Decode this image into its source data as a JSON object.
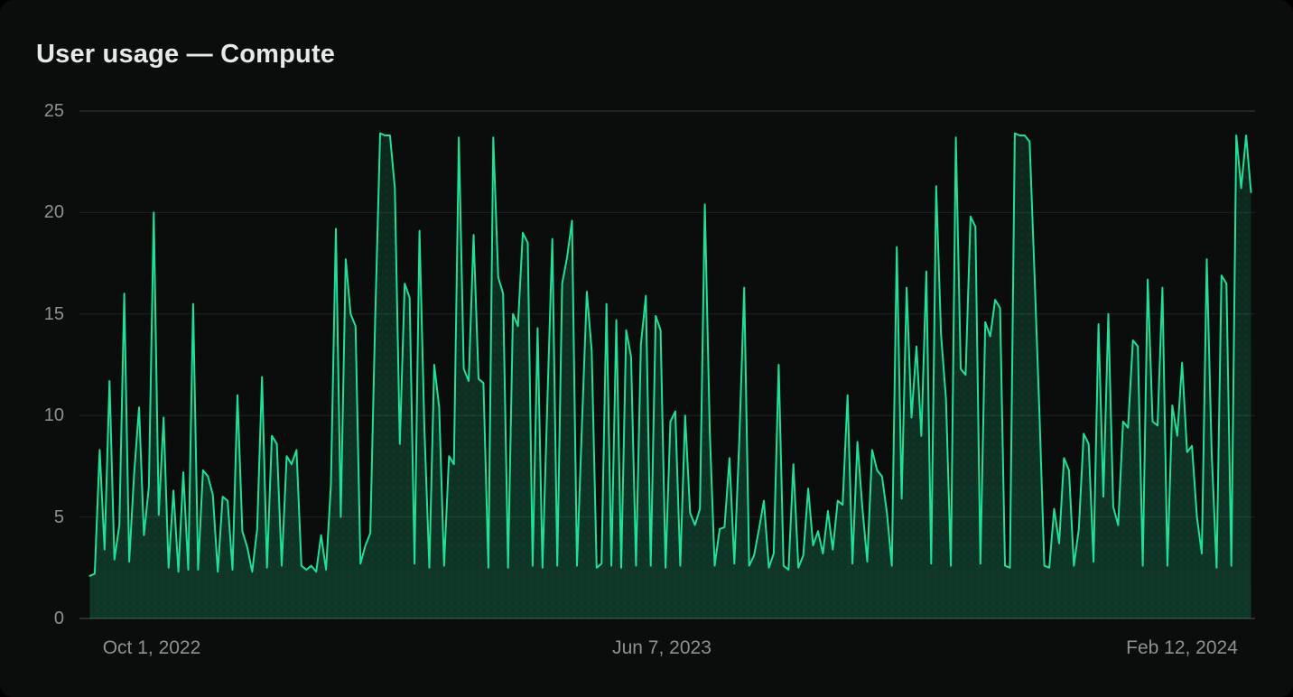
{
  "window": {
    "title": "User usage — Compute"
  },
  "colors": {
    "background": "#0b0d0c",
    "accent_line": "#20e096",
    "area_fill": "#103829",
    "grid_line": "#1f2422",
    "grid_line_top": "#363b39",
    "grid_line_zero": "#4a514e",
    "title_text": "#e6e9e7",
    "axis_text": "#8b938f"
  },
  "chart_data": {
    "type": "area",
    "title": "User usage — Compute",
    "series_name": "Compute",
    "xlabel": "",
    "ylabel": "",
    "ylim": [
      0,
      25
    ],
    "grid": true,
    "legend": false,
    "y_ticks": [
      0,
      5,
      10,
      15,
      20,
      25
    ],
    "x_tick_labels": [
      {
        "label": "Oct 1, 2022",
        "pos": 0.0614
      },
      {
        "label": "Jun 7, 2023",
        "pos": 0.4954
      },
      {
        "label": "Feb 12, 2024",
        "pos": 0.9378
      }
    ],
    "values": [
      2.1,
      2.2,
      8.3,
      3.4,
      11.7,
      2.9,
      4.6,
      16.0,
      2.8,
      7.1,
      10.4,
      4.1,
      6.5,
      20.0,
      5.1,
      9.9,
      2.5,
      6.3,
      2.3,
      7.2,
      2.4,
      15.5,
      2.4,
      7.3,
      7.0,
      6.1,
      2.3,
      6.0,
      5.8,
      2.4,
      11.0,
      4.3,
      3.5,
      2.3,
      4.4,
      11.9,
      2.5,
      9.0,
      8.6,
      2.6,
      8.0,
      7.6,
      8.3,
      2.6,
      2.4,
      2.6,
      2.3,
      4.1,
      2.4,
      6.6,
      19.2,
      5.0,
      17.7,
      15.0,
      14.4,
      2.7,
      3.6,
      4.2,
      14.9,
      23.9,
      23.8,
      23.8,
      21.2,
      8.6,
      16.5,
      15.8,
      2.7,
      19.1,
      9.4,
      2.5,
      12.5,
      10.4,
      2.6,
      8.0,
      7.6,
      23.7,
      12.3,
      11.7,
      18.9,
      11.8,
      11.6,
      2.5,
      23.7,
      16.8,
      16.0,
      2.5,
      15.0,
      14.4,
      19.0,
      18.5,
      2.6,
      14.3,
      2.5,
      10.8,
      18.7,
      2.6,
      16.5,
      17.8,
      19.6,
      2.6,
      9.4,
      16.1,
      13.2,
      2.5,
      2.7,
      15.5,
      2.6,
      14.7,
      2.5,
      14.2,
      12.9,
      2.6,
      13.5,
      15.9,
      2.6,
      14.9,
      14.2,
      2.5,
      9.7,
      10.2,
      2.6,
      10.0,
      5.2,
      4.6,
      5.4,
      20.4,
      9.2,
      2.6,
      4.4,
      4.5,
      7.9,
      2.7,
      8.8,
      16.3,
      2.6,
      3.1,
      4.4,
      5.8,
      2.5,
      3.2,
      12.5,
      2.6,
      2.4,
      7.6,
      2.5,
      3.1,
      6.4,
      3.6,
      4.3,
      3.2,
      5.3,
      3.4,
      5.8,
      5.6,
      11.0,
      2.7,
      8.7,
      5.5,
      2.8,
      8.3,
      7.3,
      7.0,
      5.2,
      2.6,
      18.3,
      5.9,
      16.3,
      9.9,
      13.4,
      9.0,
      17.1,
      2.7,
      21.3,
      14.0,
      10.8,
      2.6,
      23.7,
      12.3,
      12.0,
      19.8,
      19.3,
      2.7,
      14.6,
      13.9,
      15.7,
      15.3,
      2.6,
      2.5,
      23.9,
      23.8,
      23.8,
      23.5,
      17.0,
      10.1,
      2.6,
      2.5,
      5.4,
      3.7,
      7.9,
      7.3,
      2.6,
      4.4,
      9.1,
      8.6,
      2.8,
      14.5,
      6.0,
      15.0,
      5.5,
      4.6,
      9.7,
      9.4,
      13.7,
      13.4,
      2.6,
      16.7,
      9.7,
      9.5,
      16.3,
      2.6,
      10.5,
      9.0,
      12.6,
      8.2,
      8.5,
      5.0,
      3.2,
      17.7,
      8.2,
      2.5,
      16.9,
      16.5,
      2.6,
      23.8,
      21.2,
      23.8,
      21.0
    ]
  }
}
